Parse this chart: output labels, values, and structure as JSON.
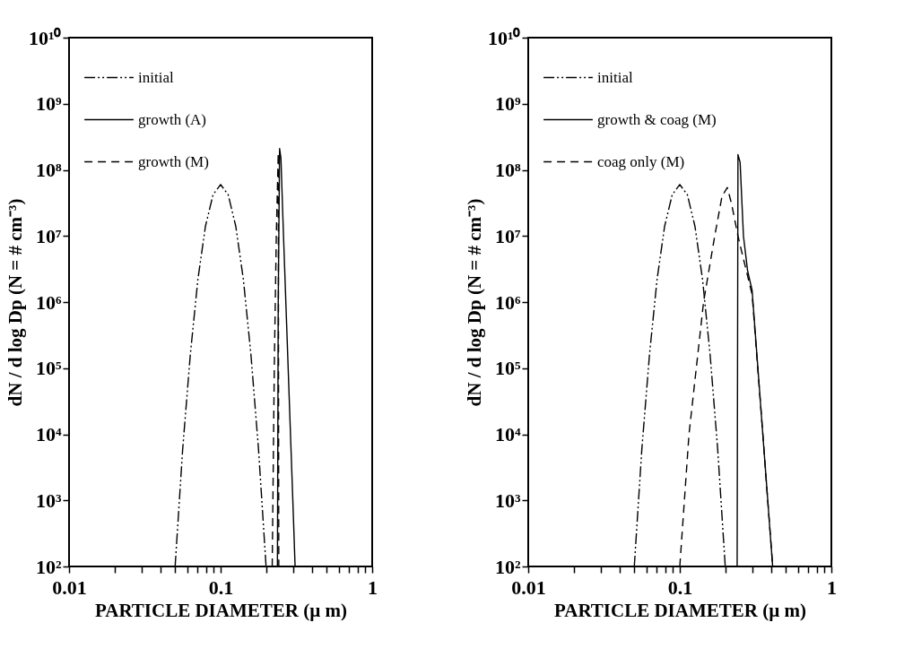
{
  "chart_data": [
    {
      "type": "line",
      "xlabel": "PARTICLE DIAMETER (µ m)",
      "ylabel": "dN / d log  Dp (N =  # cm⁻³)",
      "log": "xy",
      "grid": false,
      "legend": "top left",
      "marker": "none",
      "xlim": [
        0.01,
        1
      ],
      "ylim": [
        100,
        10000000000
      ],
      "xticks": [
        0.01,
        {
          "value": 0.02,
          "label": null
        },
        {
          "value": 0.03,
          "label": null
        },
        {
          "value": 0.04,
          "label": null
        },
        {
          "value": 0.05,
          "label": null
        },
        {
          "value": 0.06,
          "label": null
        },
        {
          "value": 0.07,
          "label": null
        },
        {
          "value": 0.08,
          "label": null
        },
        {
          "value": 0.09,
          "label": null
        },
        0.1,
        {
          "value": 0.2,
          "label": null
        },
        {
          "value": 0.3,
          "label": null
        },
        {
          "value": 0.4,
          "label": null
        },
        {
          "value": 0.5,
          "label": null
        },
        {
          "value": 0.6,
          "label": null
        },
        {
          "value": 0.7,
          "label": null
        },
        {
          "value": 0.8,
          "label": null
        },
        {
          "value": 0.9,
          "label": null
        },
        1
      ],
      "yticks": [
        {
          "value": 100,
          "label": "10²"
        },
        {
          "value": 1000,
          "label": "10³"
        },
        {
          "value": 10000,
          "label": "10⁴"
        },
        {
          "value": 100000,
          "label": "10⁵"
        },
        {
          "value": 1000000,
          "label": "10⁶"
        },
        {
          "value": 10000000,
          "label": "10⁷"
        },
        {
          "value": 100000000,
          "label": "10⁸"
        },
        {
          "value": 1000000000,
          "label": "10⁹"
        },
        {
          "value": 10000000000,
          "label": "10¹⁰"
        }
      ],
      "series": [
        {
          "name": "initial",
          "color": "#000000",
          "line_style": "dotted",
          "x": [
            0.0501,
            0.0562,
            0.0631,
            0.0708,
            0.0794,
            0.0891,
            0.1,
            0.1122,
            0.1259,
            0.1413,
            0.1585,
            0.1778,
            0.1995
          ],
          "values": [
            100,
            6000,
            160000,
            2200000,
            14000000,
            42000000,
            60000000,
            42000000,
            14000000,
            2200000,
            160000,
            6000,
            100
          ]
        },
        {
          "name": "growth (A)",
          "color": "#000000",
          "line_style": "solid",
          "x": [
            0.237,
            0.24,
            0.245,
            0.25,
            0.26,
            0.28,
            0.3,
            0.31
          ],
          "values": [
            100,
            1000000,
            210000000,
            150000000,
            10000000,
            80000,
            900,
            100
          ]
        },
        {
          "name": "growth (M)",
          "color": "#000000",
          "line_style": "dashed",
          "x": [
            0.219,
            0.226,
            0.233,
            0.24,
            0.242
          ],
          "values": [
            100,
            100000,
            10000000,
            180000000,
            100
          ]
        }
      ]
    },
    {
      "type": "line",
      "xlabel": "PARTICLE DIAMETER (µ m)",
      "ylabel": "dN / d log  Dp (N =  # cm⁻³)",
      "log": "xy",
      "grid": false,
      "legend": "top left",
      "marker": "none",
      "xlim": [
        0.01,
        1
      ],
      "ylim": [
        100,
        10000000000
      ],
      "xticks": [
        0.01,
        {
          "value": 0.02,
          "label": null
        },
        {
          "value": 0.03,
          "label": null
        },
        {
          "value": 0.04,
          "label": null
        },
        {
          "value": 0.05,
          "label": null
        },
        {
          "value": 0.06,
          "label": null
        },
        {
          "value": 0.07,
          "label": null
        },
        {
          "value": 0.08,
          "label": null
        },
        {
          "value": 0.09,
          "label": null
        },
        0.1,
        {
          "value": 0.2,
          "label": null
        },
        {
          "value": 0.3,
          "label": null
        },
        {
          "value": 0.4,
          "label": null
        },
        {
          "value": 0.5,
          "label": null
        },
        {
          "value": 0.6,
          "label": null
        },
        {
          "value": 0.7,
          "label": null
        },
        {
          "value": 0.8,
          "label": null
        },
        {
          "value": 0.9,
          "label": null
        },
        1
      ],
      "yticks": [
        {
          "value": 100,
          "label": "10²"
        },
        {
          "value": 1000,
          "label": "10³"
        },
        {
          "value": 10000,
          "label": "10⁴"
        },
        {
          "value": 100000,
          "label": "10⁵"
        },
        {
          "value": 1000000,
          "label": "10⁶"
        },
        {
          "value": 10000000,
          "label": "10⁷"
        },
        {
          "value": 100000000,
          "label": "10⁸"
        },
        {
          "value": 1000000000,
          "label": "10⁹"
        },
        {
          "value": 10000000000,
          "label": "10¹⁰"
        }
      ],
      "series": [
        {
          "name": "initial",
          "color": "#000000",
          "line_style": "dotted",
          "x": [
            0.0501,
            0.0562,
            0.0631,
            0.0708,
            0.0794,
            0.0891,
            0.1,
            0.1122,
            0.1259,
            0.1413,
            0.1585,
            0.1778,
            0.1995
          ],
          "values": [
            100,
            6000,
            160000,
            2200000,
            14000000,
            42000000,
            60000000,
            42000000,
            14000000,
            2200000,
            160000,
            6000,
            100
          ]
        },
        {
          "name": "growth & coag (M)",
          "color": "#000000",
          "line_style": "solid",
          "x": [
            0.239,
            0.242,
            0.25,
            0.263,
            0.28,
            0.3,
            0.353,
            0.41
          ],
          "values": [
            100,
            170000000,
            130000000,
            10000000,
            3000000,
            1500000,
            10000,
            100
          ]
        },
        {
          "name": "coag only (M)",
          "color": "#000000",
          "line_style": "dashed",
          "x": [
            0.1,
            0.115,
            0.1435,
            0.17,
            0.19,
            0.206,
            0.22,
            0.242,
            0.26,
            0.28,
            0.3,
            0.353,
            0.41
          ],
          "values": [
            100,
            10000,
            1000000,
            10000000,
            40000000,
            54000000,
            30000000,
            10000000,
            5000000,
            2500000,
            1300000,
            10000,
            100
          ]
        }
      ]
    }
  ]
}
